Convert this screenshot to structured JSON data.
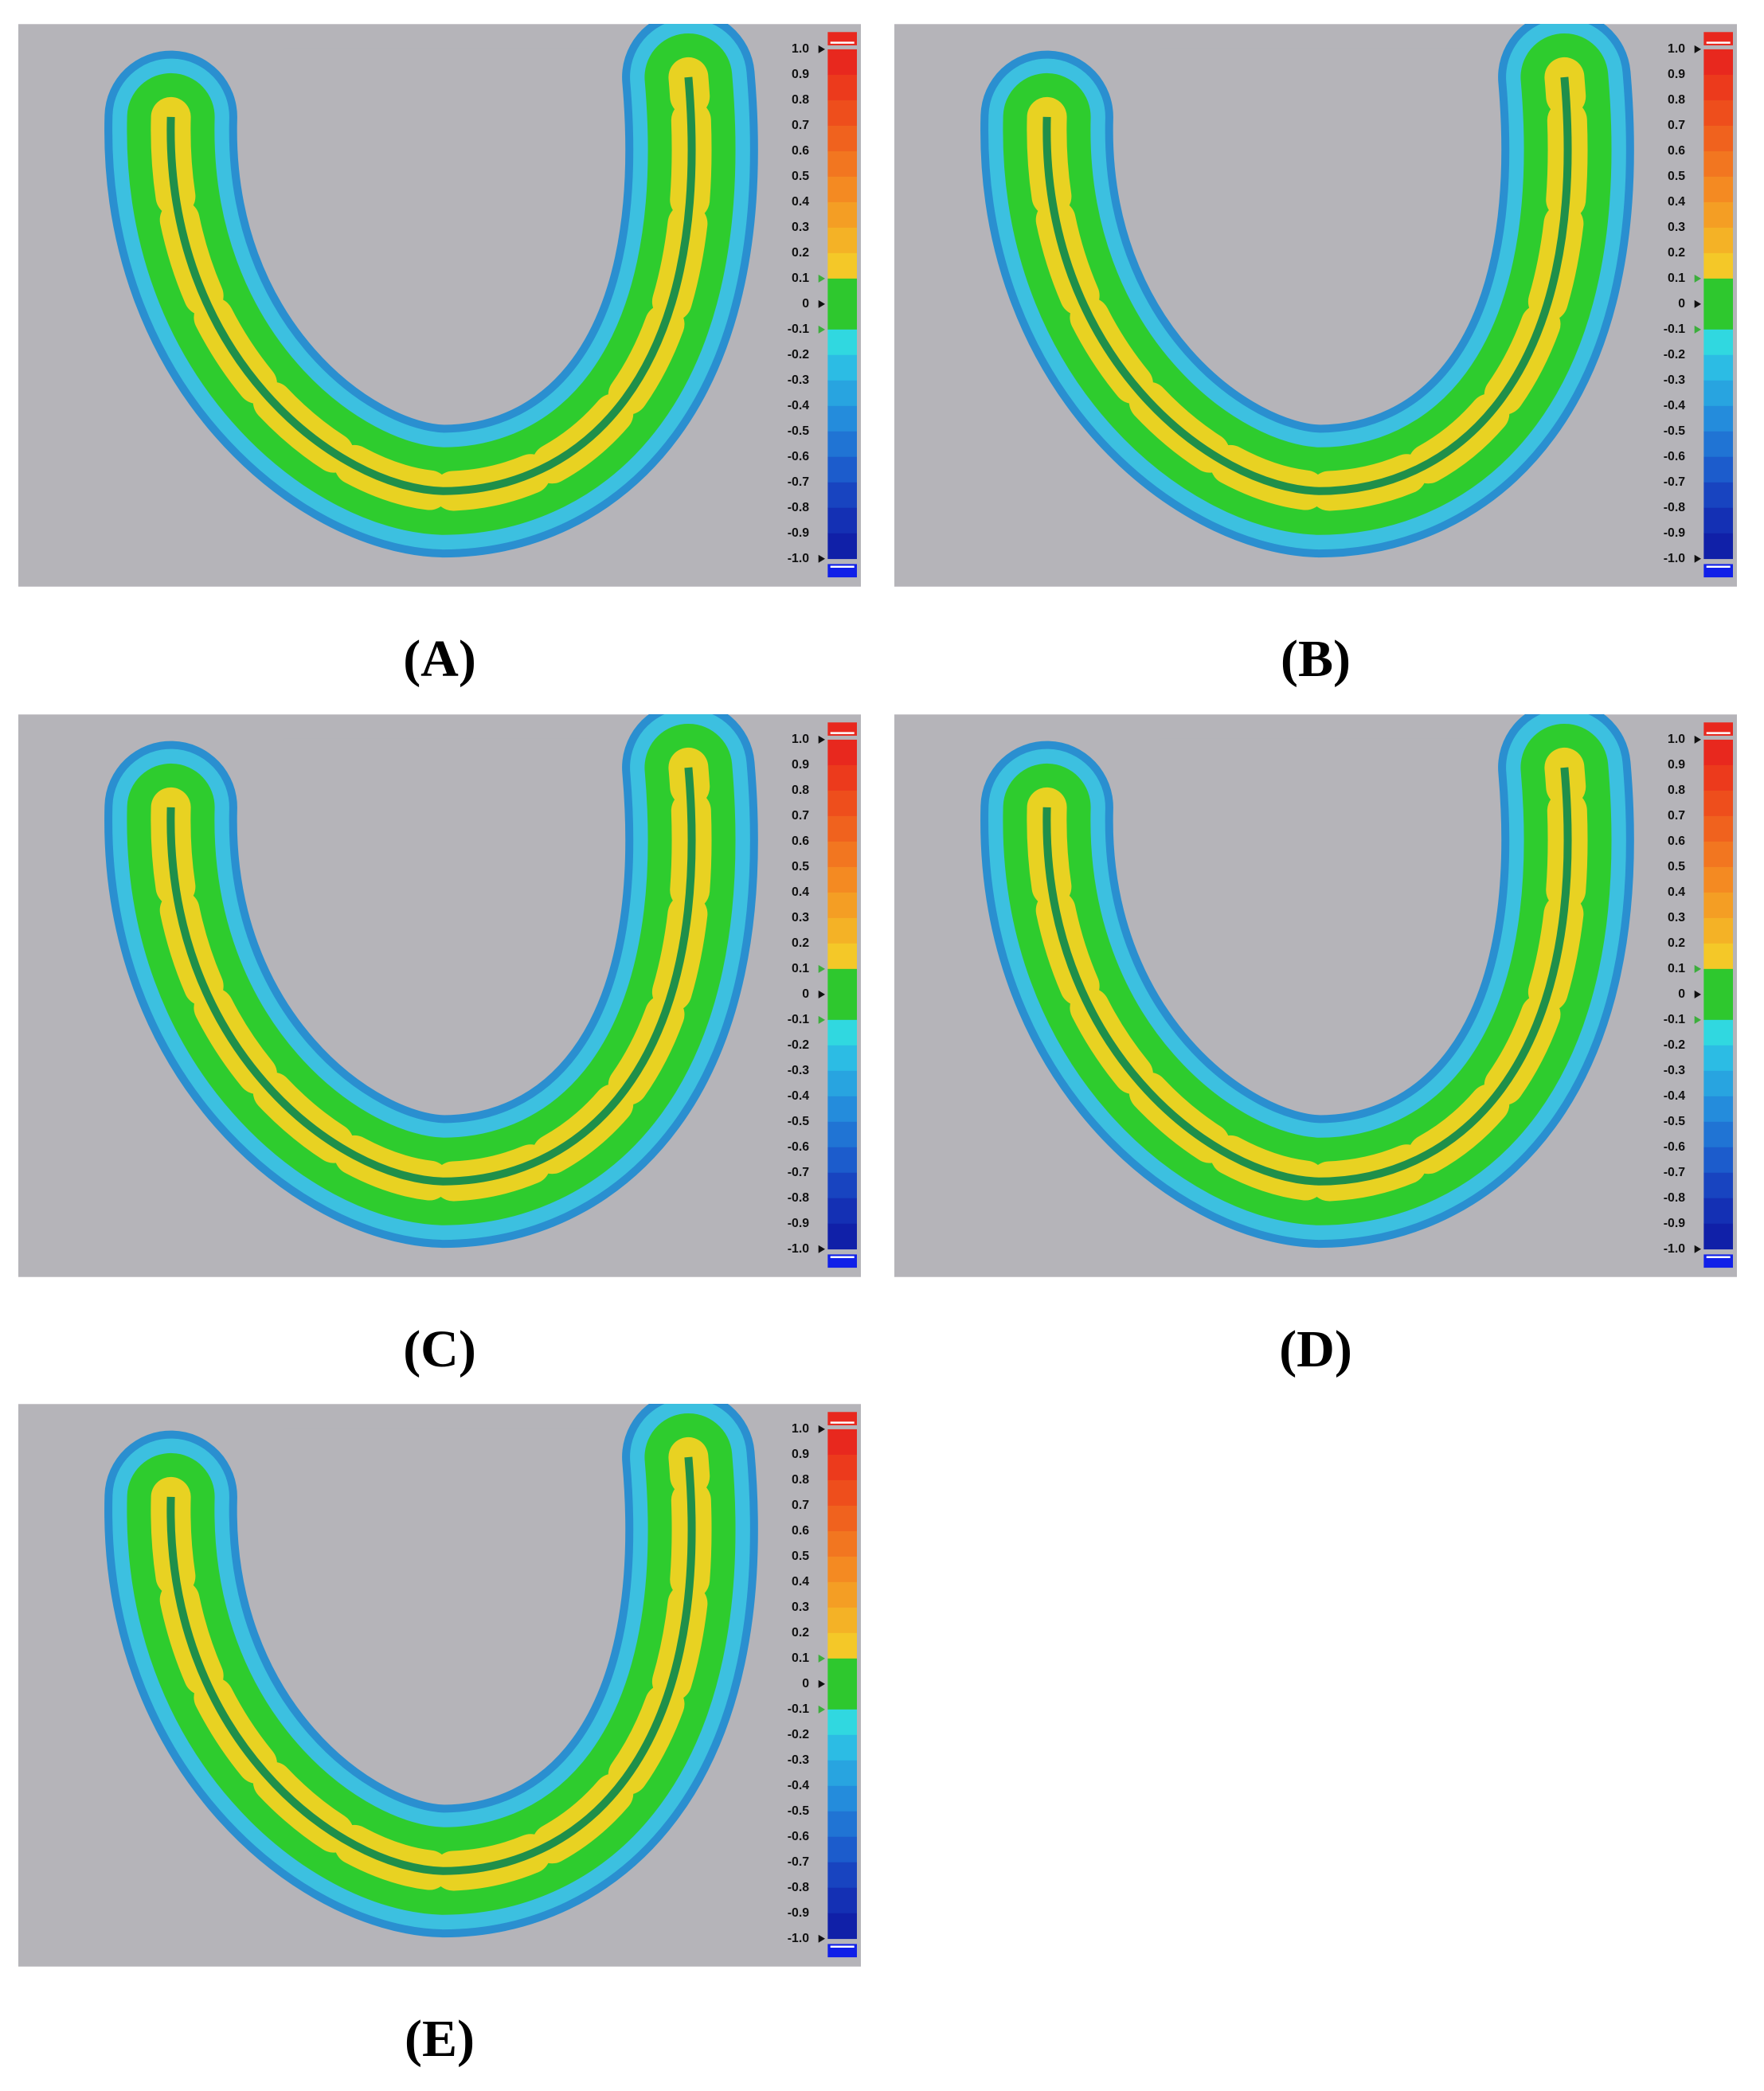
{
  "panels": [
    {
      "label": "(A)"
    },
    {
      "label": "(B)"
    },
    {
      "label": "(C)"
    },
    {
      "label": "(D)"
    },
    {
      "label": "(E)"
    }
  ],
  "scale_labels": [
    "1.0",
    "0.9",
    "0.8",
    "0.7",
    "0.6",
    "0.5",
    "0.4",
    "0.3",
    "0.2",
    "0.1",
    "0",
    "-0.1",
    "-0.2",
    "-0.3",
    "-0.4",
    "-0.5",
    "-0.6",
    "-0.7",
    "-0.8",
    "-0.9",
    "-1.0"
  ]
}
